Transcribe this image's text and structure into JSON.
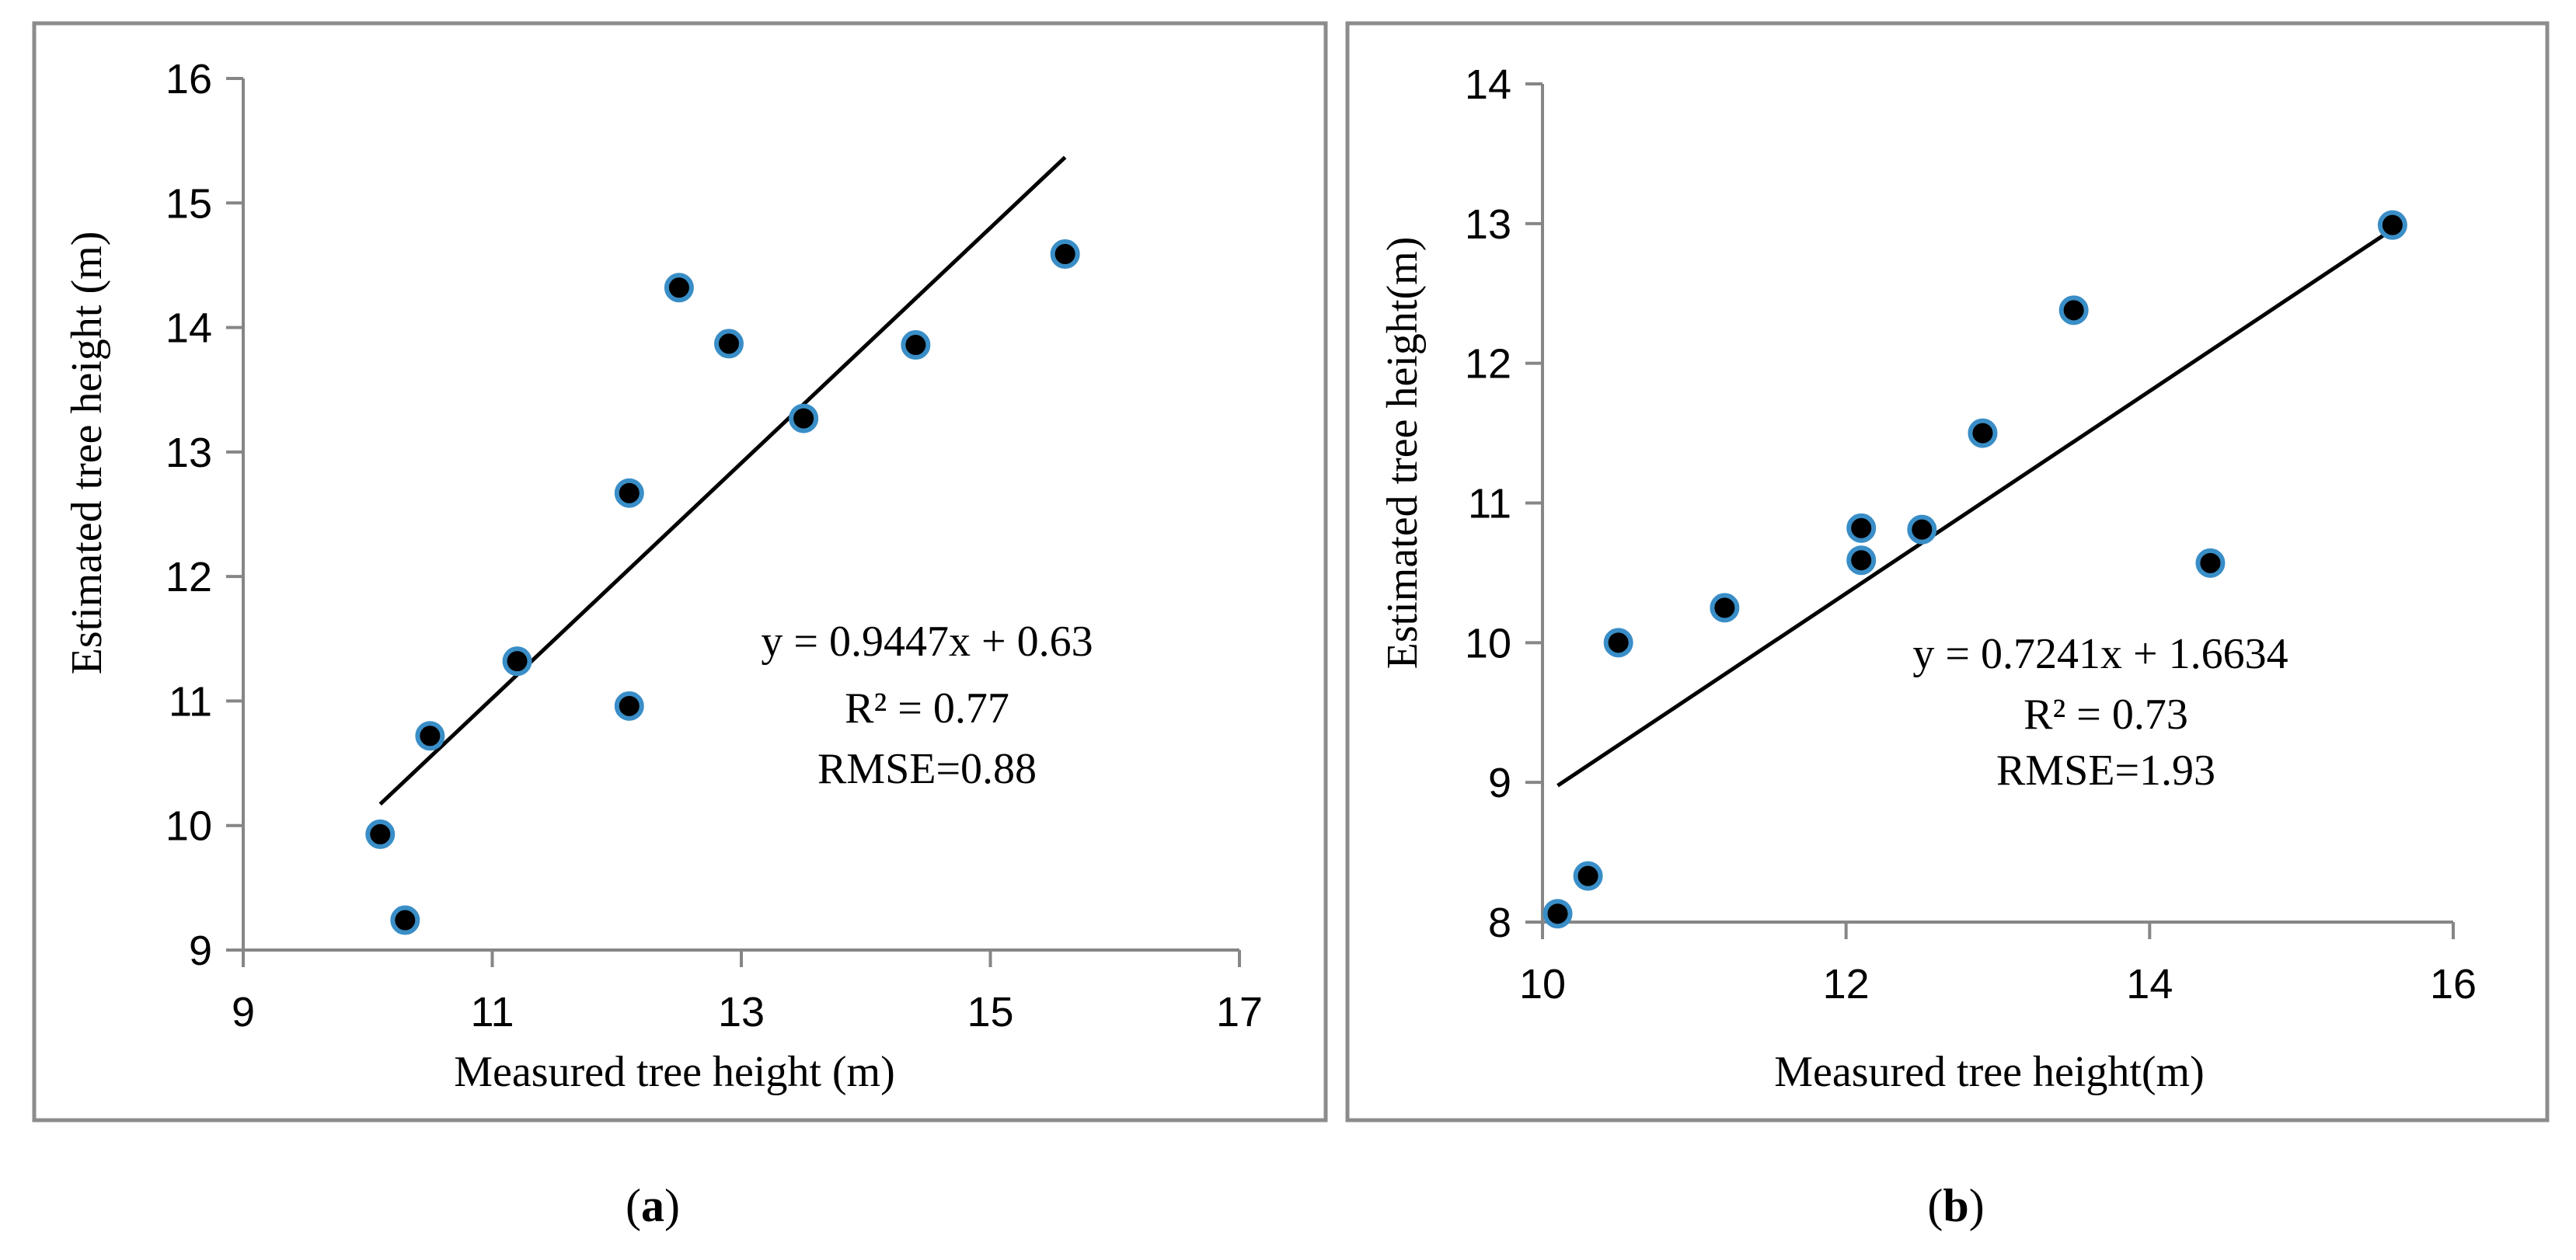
{
  "colors": {
    "frame": "#8c8c8c",
    "axis": "#868686",
    "marker_fill": "#000000",
    "marker_edge": "#3a8ec7",
    "trendline": "#000000"
  },
  "chart_data": [
    {
      "type": "scatter",
      "panel": "a",
      "caption_letter": "a",
      "xlabel": "Measured tree height (m)",
      "ylabel": "Estimated  tree height (m)",
      "xlim": [
        9,
        17
      ],
      "ylim": [
        9,
        16
      ],
      "xticks": [
        9,
        11,
        13,
        15,
        17
      ],
      "yticks": [
        9,
        10,
        11,
        12,
        13,
        14,
        15,
        16
      ],
      "grid": false,
      "x": [
        10.1,
        10.3,
        10.5,
        11.2,
        12.1,
        12.1,
        12.5,
        12.9,
        13.5,
        14.4,
        15.6
      ],
      "y": [
        9.93,
        9.24,
        10.72,
        11.32,
        12.67,
        10.96,
        14.32,
        13.87,
        13.27,
        13.86,
        14.59
      ],
      "trendline": {
        "slope": 0.9447,
        "intercept": 0.63,
        "x_range": [
          10.1,
          15.6
        ]
      },
      "annotations": [
        "y = 0.9447x + 0.63",
        "R² = 0.77",
        "RMSE=0.88"
      ]
    },
    {
      "type": "scatter",
      "panel": "b",
      "caption_letter": "b",
      "xlabel": "Measured tree height(m)",
      "ylabel": "Estimated tree height(m)",
      "xlim": [
        10,
        16
      ],
      "ylim": [
        8,
        14
      ],
      "xticks": [
        10,
        12,
        14,
        16
      ],
      "yticks": [
        8,
        9,
        10,
        11,
        12,
        13,
        14
      ],
      "grid": false,
      "x": [
        10.1,
        10.3,
        10.5,
        11.2,
        12.1,
        12.1,
        12.5,
        12.9,
        13.5,
        14.4,
        15.6
      ],
      "y": [
        8.06,
        8.33,
        10.0,
        10.25,
        10.82,
        10.59,
        10.81,
        11.5,
        12.38,
        10.57,
        12.99
      ],
      "trendline": {
        "slope": 0.7241,
        "intercept": 1.6634,
        "x_range": [
          10.1,
          15.6
        ]
      },
      "annotations": [
        "y = 0.7241x + 1.6634",
        "R² = 0.73",
        "RMSE=1.93"
      ]
    }
  ]
}
